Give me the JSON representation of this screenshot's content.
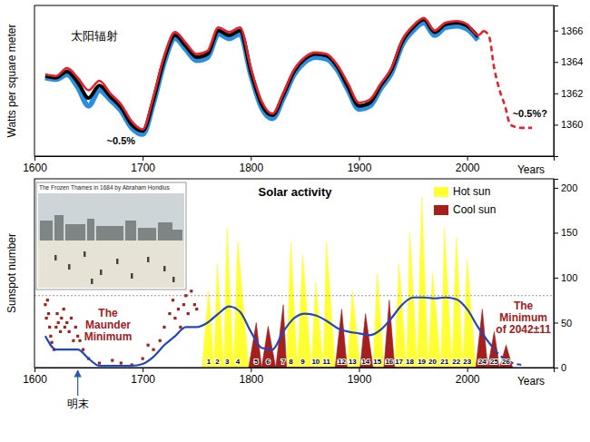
{
  "chart_data": [
    {
      "type": "line",
      "title": "太阳辐射",
      "x_label": "Years",
      "y_label": "Watts per square meter",
      "x": [
        1610,
        1620,
        1630,
        1640,
        1650,
        1660,
        1670,
        1680,
        1690,
        1700,
        1710,
        1720,
        1730,
        1740,
        1750,
        1760,
        1770,
        1780,
        1790,
        1800,
        1810,
        1820,
        1830,
        1840,
        1850,
        1860,
        1870,
        1880,
        1890,
        1900,
        1910,
        1920,
        1930,
        1940,
        1950,
        1960,
        1970,
        1980,
        1990,
        2000,
        2010,
        2015,
        2020,
        2025,
        2030,
        2035,
        2040,
        2050,
        2060
      ],
      "xlim": [
        1600,
        2080
      ],
      "xticks": [
        1600,
        1700,
        1800,
        1900,
        2000
      ],
      "ylim": [
        1358,
        1367.6
      ],
      "yticks": [
        1360,
        1362,
        1364,
        1366
      ],
      "grid": false,
      "series": [
        {
          "color": "#2a8fe0",
          "values": [
            1363.0,
            1362.9,
            1363.2,
            1362.4,
            1361.2,
            1362.2,
            1361.6,
            1360.9,
            1359.8,
            1359.4,
            1361.4,
            1364.0,
            1365.5,
            1364.8,
            1364.1,
            1364.3,
            1365.8,
            1365.5,
            1365.8,
            1363.2,
            1361.1,
            1360.4,
            1361.7,
            1363.2,
            1364.0,
            1364.3,
            1364.2,
            1363.5,
            1362.2,
            1361.0,
            1361.2,
            1362.3,
            1363.3,
            1365.1,
            1366.0,
            1366.5,
            1365.7,
            1366.2,
            1366.3,
            1366.1,
            1365.4,
            null,
            null,
            null,
            null,
            null,
            null,
            null,
            null
          ]
        },
        {
          "color": "#000000",
          "values": [
            1363.1,
            1363.0,
            1363.4,
            1362.7,
            1361.7,
            1362.5,
            1361.8,
            1361.1,
            1360.0,
            1359.6,
            1361.6,
            1364.2,
            1365.7,
            1365.0,
            1364.3,
            1364.5,
            1366.0,
            1365.7,
            1366.0,
            1363.4,
            1361.3,
            1360.6,
            1361.9,
            1363.4,
            1364.2,
            1364.5,
            1364.4,
            1363.7,
            1362.4,
            1361.2,
            1361.4,
            1362.5,
            1363.5,
            1365.3,
            1366.2,
            1366.7,
            1365.9,
            1366.4,
            1366.5,
            1366.3,
            1365.6,
            null,
            null,
            null,
            null,
            null,
            null,
            null,
            null
          ]
        },
        {
          "color": "#e8202a",
          "values": [
            1363.2,
            1363.1,
            1363.6,
            1363.0,
            1362.2,
            1362.8,
            1362.0,
            1361.3,
            1360.2,
            1359.7,
            1361.8,
            1364.4,
            1365.9,
            1365.2,
            1364.5,
            1364.7,
            1366.2,
            1365.9,
            1366.2,
            1363.6,
            1361.5,
            1360.7,
            1362.0,
            1363.5,
            1364.3,
            1364.6,
            1364.5,
            1363.8,
            1362.6,
            1361.4,
            1361.6,
            1362.6,
            1363.6,
            1365.4,
            1366.3,
            1366.8,
            1366.0,
            1366.5,
            1366.6,
            1366.4,
            1365.7,
            1366.0,
            null,
            null,
            null,
            null,
            null,
            null,
            null
          ]
        },
        {
          "color": "#e8202a",
          "line_style": "dashed",
          "values": [
            null,
            null,
            null,
            null,
            null,
            null,
            null,
            null,
            null,
            null,
            null,
            null,
            null,
            null,
            null,
            null,
            null,
            null,
            null,
            null,
            null,
            null,
            null,
            null,
            null,
            null,
            null,
            null,
            null,
            null,
            null,
            null,
            null,
            null,
            null,
            null,
            null,
            null,
            null,
            null,
            null,
            1366.0,
            1365.7,
            1363.6,
            1362.2,
            1361.2,
            1360.0,
            1359.8,
            1359.8
          ]
        }
      ],
      "annotations": [
        {
          "text": "~0.5%",
          "x": 1680,
          "y": 1359.0
        },
        {
          "text": "~0.5%?",
          "x": 2058,
          "y": 1360.7
        }
      ]
    },
    {
      "type": "area",
      "title": "Solar activity",
      "x_label": "Years",
      "y_label": "Sunspot number",
      "xlim": [
        1600,
        2080
      ],
      "xticks": [
        1600,
        1700,
        1800,
        1900,
        2000
      ],
      "ylim": [
        0,
        210
      ],
      "yticks": [
        0,
        50,
        100,
        150,
        200
      ],
      "grid": false,
      "legend": "upper right",
      "reference_line": 80,
      "series": [
        {
          "name": "Hot sun",
          "color": "#ffff33",
          "type": "area",
          "x": [
            1755,
            1761,
            1766,
            1769,
            1775,
            1778,
            1784,
            1788,
            1798,
            1833,
            1837,
            1843,
            1848,
            1856,
            1860,
            1867,
            1870,
            1878,
            1889,
            1894,
            1901,
            1913,
            1917,
            1923,
            1933,
            1937,
            1944,
            1947,
            1954,
            1958,
            1964,
            1968,
            1976,
            1979,
            1986,
            1990,
            1996,
            2000,
            2008
          ],
          "values": [
            0,
            86,
            0,
            115,
            0,
            155,
            0,
            140,
            0,
            0,
            140,
            0,
            125,
            0,
            95,
            0,
            140,
            0,
            0,
            85,
            0,
            0,
            105,
            0,
            0,
            115,
            0,
            150,
            0,
            190,
            0,
            105,
            0,
            155,
            0,
            145,
            0,
            120,
            0
          ]
        },
        {
          "name": "Cool sun",
          "color": "#a3201c",
          "type": "area",
          "x": [
            1798,
            1805,
            1810,
            1816,
            1823,
            1830,
            1833,
            1878,
            1884,
            1889,
            1901,
            1906,
            1913,
            1923,
            1928,
            1933,
            2008,
            2014,
            2019,
            2025,
            2030,
            2036,
            2042
          ],
          "values": [
            0,
            50,
            0,
            46,
            0,
            70,
            0,
            0,
            65,
            0,
            0,
            60,
            0,
            0,
            75,
            0,
            0,
            65,
            0,
            40,
            0,
            25,
            0
          ]
        },
        {
          "color": "#a3201c",
          "type": "scatter",
          "marker": "square",
          "x": [
            1610,
            1611,
            1612,
            1613,
            1614,
            1615,
            1616,
            1618,
            1620,
            1621,
            1622,
            1624,
            1625,
            1627,
            1628,
            1630,
            1632,
            1634,
            1636,
            1638,
            1640,
            1642,
            1645,
            1650,
            1660,
            1672,
            1680,
            1690,
            1700,
            1705,
            1710,
            1716,
            1720,
            1725,
            1728,
            1730,
            1733,
            1735,
            1738,
            1740,
            1742,
            1745,
            1748,
            1750
          ],
          "values": [
            70,
            55,
            75,
            60,
            45,
            35,
            28,
            20,
            45,
            60,
            50,
            40,
            55,
            65,
            45,
            50,
            40,
            55,
            30,
            45,
            35,
            30,
            20,
            10,
            5,
            8,
            5,
            3,
            10,
            25,
            20,
            30,
            45,
            60,
            75,
            55,
            65,
            45,
            70,
            80,
            60,
            85,
            70,
            65
          ]
        },
        {
          "color": "#2346c0",
          "type": "line",
          "x": [
            1610,
            1620,
            1630,
            1640,
            1650,
            1660,
            1670,
            1680,
            1690,
            1700,
            1710,
            1720,
            1730,
            1740,
            1750,
            1760,
            1770,
            1780,
            1790,
            1800,
            1810,
            1820,
            1830,
            1840,
            1850,
            1860,
            1870,
            1880,
            1890,
            1900,
            1910,
            1920,
            1930,
            1940,
            1950,
            1960,
            1970,
            1980,
            1990,
            2000,
            2010,
            2020
          ],
          "values": [
            35,
            20,
            20,
            20,
            10,
            2,
            2,
            2,
            2,
            4,
            12,
            25,
            35,
            45,
            45,
            50,
            60,
            68,
            62,
            40,
            22,
            20,
            40,
            55,
            60,
            58,
            52,
            44,
            40,
            38,
            36,
            42,
            55,
            70,
            78,
            78,
            77,
            78,
            76,
            65,
            45,
            28
          ]
        },
        {
          "color": "#2346c0",
          "type": "line",
          "line_style": "dashed",
          "x": [
            2020,
            2030,
            2040,
            2050
          ],
          "values": [
            28,
            14,
            6,
            3
          ]
        }
      ],
      "cycles": {
        "labels": [
          "1",
          "2",
          "3",
          "4",
          "5",
          "6",
          "7",
          "8",
          "9",
          "10",
          "11",
          "12",
          "13",
          "14",
          "15",
          "16",
          "17",
          "18",
          "19",
          "20",
          "21",
          "22",
          "23",
          "24",
          "25",
          "26"
        ],
        "x": [
          1761,
          1769,
          1778,
          1788,
          1805,
          1816,
          1830,
          1837,
          1848,
          1860,
          1870,
          1884,
          1894,
          1906,
          1917,
          1928,
          1937,
          1947,
          1958,
          1968,
          1979,
          1990,
          2000,
          2014,
          2025,
          2036
        ]
      },
      "annotations": [
        {
          "text": "The Maunder Minimum",
          "x": 1668,
          "y": 48,
          "color": "#a3201c"
        },
        {
          "text": "The Minimum of 2042±11",
          "x": 2052,
          "y": 56,
          "color": "#a3201c"
        },
        {
          "text": "明末",
          "x": 1640,
          "arrow": true
        }
      ],
      "inset_caption": "The Frozen Thames in 1684 by Abraham Hondius"
    }
  ]
}
